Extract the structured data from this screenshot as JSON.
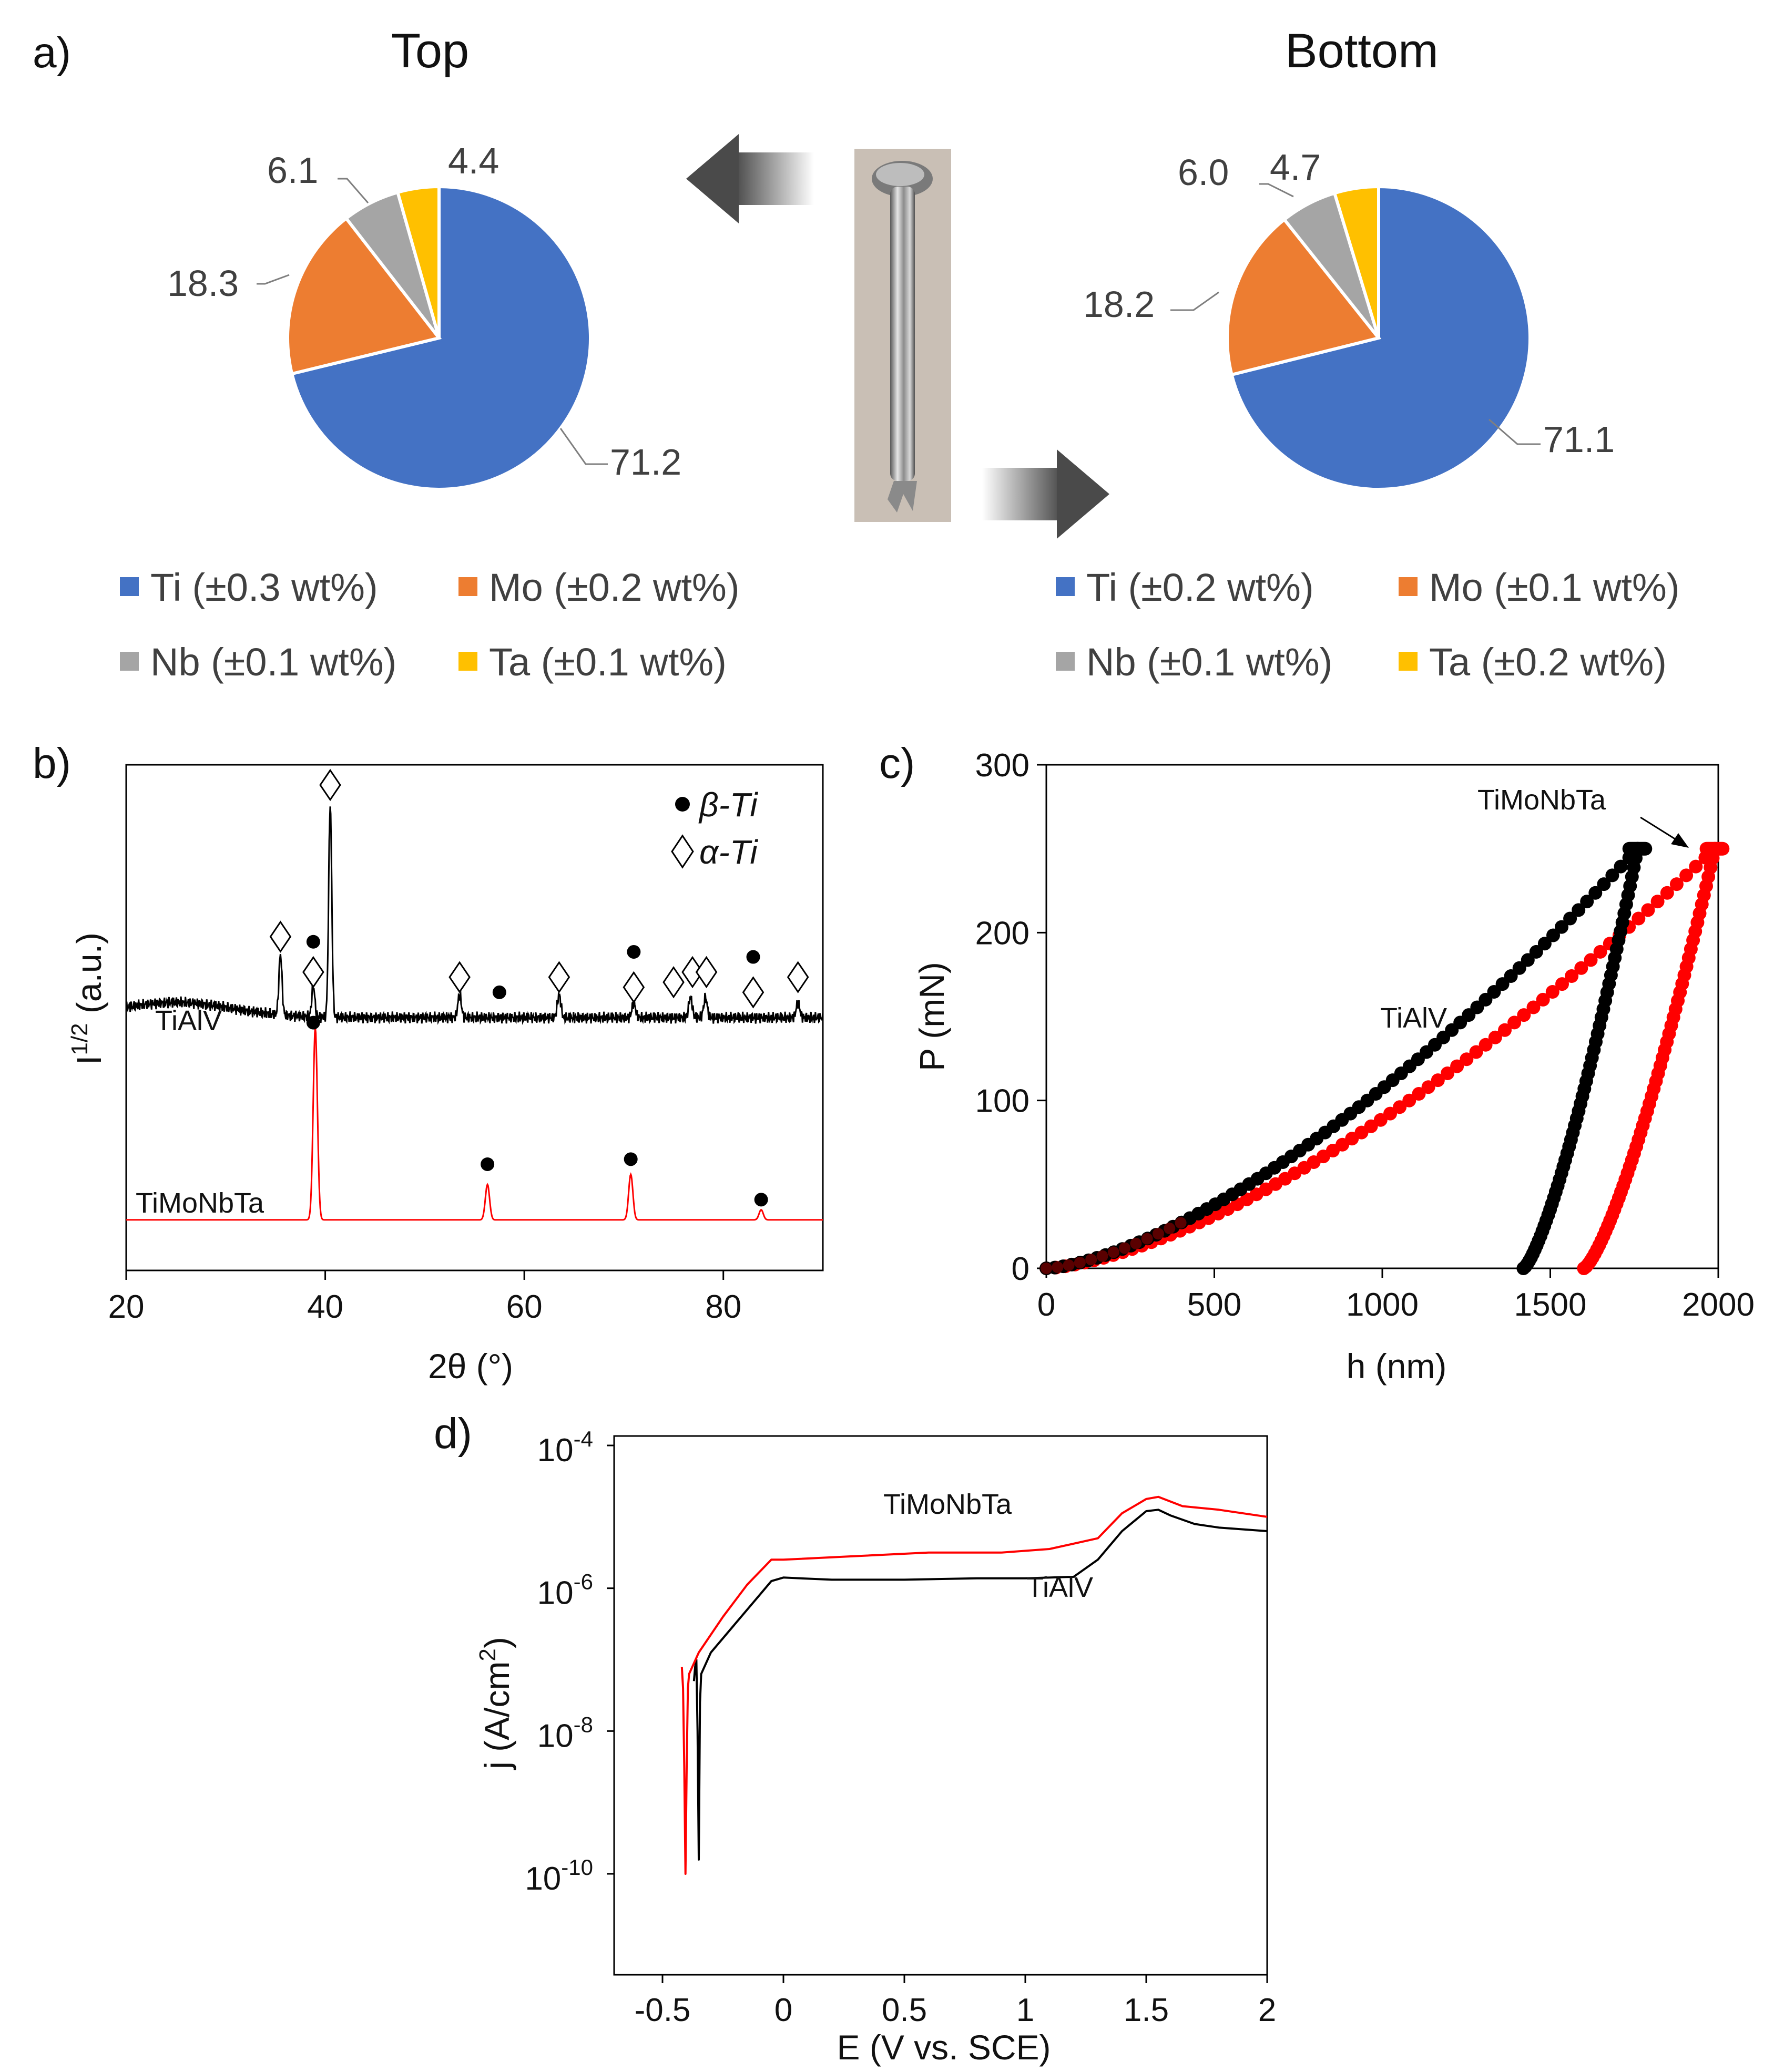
{
  "colors": {
    "ti": "#4472C4",
    "mo": "#ED7D31",
    "nb": "#A5A5A5",
    "ta": "#FFC000",
    "black_series": "#000000",
    "red_series": "#FF0000"
  },
  "icons": {
    "rod_photo": "metal-rod-photo-icon",
    "arrow_left": "arrow-left-icon",
    "arrow_right": "arrow-right-icon",
    "dot_marker": "filled-circle-icon",
    "diamond_marker": "open-diamond-icon"
  },
  "panel_labels": {
    "a": "a)",
    "b": "b)",
    "c": "c)",
    "d": "d)"
  },
  "chart_data": [
    {
      "type": "pie",
      "panel": "a",
      "title": "Top",
      "categories": [
        "Ti",
        "Mo",
        "Nb",
        "Ta"
      ],
      "values": [
        71.2,
        18.3,
        6.1,
        4.4
      ],
      "value_labels": [
        "71.2",
        "18.3",
        "6.1",
        "4.4"
      ],
      "legend": [
        "Ti (±0.3 wt%)",
        "Mo (±0.2 wt%)",
        "Nb (±0.1 wt%)",
        "Ta (±0.1 wt%)"
      ]
    },
    {
      "type": "pie",
      "panel": "a",
      "title": "Bottom",
      "categories": [
        "Ti",
        "Mo",
        "Nb",
        "Ta"
      ],
      "values": [
        71.1,
        18.2,
        6.0,
        4.7
      ],
      "value_labels": [
        "71.1",
        "18.2",
        "6.0",
        "4.7"
      ],
      "legend": [
        "Ti (±0.2 wt%)",
        "Mo (±0.1 wt%)",
        "Nb (±0.1 wt%)",
        "Ta (±0.2 wt%)"
      ]
    },
    {
      "type": "line",
      "panel": "b",
      "xlabel": "2θ (°)",
      "ylabel": "I1/2 (a.u.)",
      "ylabel_main": "I",
      "ylabel_sup": "1/2",
      "ylabel_rest": " (a.u.)",
      "xlim": [
        20,
        90
      ],
      "xticks": [
        "20",
        "40",
        "60",
        "80"
      ],
      "xtick_values": [
        20,
        40,
        60,
        80
      ],
      "legend": [
        {
          "marker": "dot",
          "label": "β-Ti"
        },
        {
          "marker": "diamond",
          "label": "α-Ti"
        }
      ],
      "series": [
        {
          "name": "TiAlV",
          "color": "#000000",
          "baseline": 0.5,
          "peaks": [
            {
              "x": 35.5,
              "h": 0.12,
              "w": 0.22
            },
            {
              "x": 38.8,
              "h": 0.06,
              "w": 0.22
            },
            {
              "x": 40.5,
              "h": 0.42,
              "w": 0.22
            },
            {
              "x": 53.5,
              "h": 0.045,
              "w": 0.25
            },
            {
              "x": 63.5,
              "h": 0.045,
              "w": 0.25
            },
            {
              "x": 71.0,
              "h": 0.03,
              "w": 0.25
            },
            {
              "x": 76.7,
              "h": 0.04,
              "w": 0.25
            },
            {
              "x": 78.2,
              "h": 0.04,
              "w": 0.25
            },
            {
              "x": 87.5,
              "h": 0.03,
              "w": 0.25
            }
          ],
          "markers": [
            {
              "type": "diamond",
              "x": 35.5,
              "level": 0.66
            },
            {
              "type": "dot",
              "x": 38.8,
              "level": 0.65
            },
            {
              "type": "diamond",
              "x": 38.8,
              "level": 0.59
            },
            {
              "type": "dot",
              "x": 38.8,
              "level": 0.49
            },
            {
              "type": "diamond",
              "x": 40.5,
              "level": 0.96
            },
            {
              "type": "diamond",
              "x": 53.5,
              "level": 0.58
            },
            {
              "type": "dot",
              "x": 57.5,
              "level": 0.55
            },
            {
              "type": "diamond",
              "x": 63.5,
              "level": 0.58
            },
            {
              "type": "dot",
              "x": 71.0,
              "level": 0.63
            },
            {
              "type": "diamond",
              "x": 71.0,
              "level": 0.56
            },
            {
              "type": "diamond",
              "x": 75.0,
              "level": 0.57
            },
            {
              "type": "diamond",
              "x": 76.9,
              "level": 0.59
            },
            {
              "type": "diamond",
              "x": 78.3,
              "level": 0.59
            },
            {
              "type": "dot",
              "x": 83.0,
              "level": 0.62
            },
            {
              "type": "diamond",
              "x": 83.0,
              "level": 0.55
            },
            {
              "type": "diamond",
              "x": 87.5,
              "level": 0.58
            }
          ]
        },
        {
          "name": "TiMoNbTa",
          "color": "#FF0000",
          "baseline": 0.1,
          "peaks": [
            {
              "x": 39.0,
              "h": 0.38,
              "w": 0.3
            },
            {
              "x": 56.3,
              "h": 0.07,
              "w": 0.3
            },
            {
              "x": 70.7,
              "h": 0.09,
              "w": 0.3
            },
            {
              "x": 83.8,
              "h": 0.02,
              "w": 0.3
            }
          ],
          "markers": [
            {
              "type": "dot",
              "x": 56.3,
              "level": 0.21
            },
            {
              "type": "dot",
              "x": 70.7,
              "level": 0.22
            },
            {
              "type": "dot",
              "x": 83.8,
              "level": 0.14
            }
          ]
        }
      ]
    },
    {
      "type": "scatter",
      "panel": "c",
      "xlabel": "h (nm)",
      "ylabel": "P (mN)",
      "xlim": [
        0,
        2000
      ],
      "ylim": [
        0,
        300
      ],
      "xticks": [
        0,
        500,
        1000,
        1500,
        2000
      ],
      "yticks": [
        0,
        100,
        200,
        300
      ],
      "annotations": [
        "TiMoNbTa",
        "TiAlV"
      ],
      "series": [
        {
          "name": "TiAlV",
          "color": "#000000",
          "max_load": 250,
          "max_depth": 1760,
          "final_depth": 1420,
          "loading_exponent": 1.5
        },
        {
          "name": "TiMoNbTa",
          "color": "#FF0000",
          "max_load": 250,
          "max_depth": 1990,
          "final_depth": 1600,
          "loading_exponent": 1.5
        }
      ]
    },
    {
      "type": "line",
      "panel": "d",
      "xlabel": "E (V vs. SCE)",
      "ylabel": "j (A/cm2)",
      "ylabel_main": "j (A/cm",
      "ylabel_sup": "2",
      "ylabel_rest": ")",
      "xlim": [
        -0.7,
        2
      ],
      "ylim_log10": [
        -11,
        -4
      ],
      "xticks": [
        "-0.5",
        "0",
        "0.5",
        "1",
        "1.5",
        "2"
      ],
      "xtick_values": [
        -0.5,
        0,
        0.5,
        1,
        1.5,
        2
      ],
      "yticks": [
        {
          "base": "10",
          "exp": "-4",
          "value": -4
        },
        {
          "base": "10",
          "exp": "-6",
          "value": -6
        },
        {
          "base": "10",
          "exp": "-8",
          "value": -8
        },
        {
          "base": "10",
          "exp": "-10",
          "value": -10
        }
      ],
      "annotations": [
        "TiMoNbTa",
        "TiAlV"
      ],
      "series": [
        {
          "name": "TiAlV",
          "color": "#000000",
          "x": [
            -0.37,
            -0.365,
            -0.36,
            -0.355,
            -0.35,
            -0.345,
            -0.34,
            -0.3,
            -0.2,
            -0.1,
            -0.05,
            0.0,
            0.2,
            0.5,
            0.8,
            1.0,
            1.2,
            1.3,
            1.4,
            1.5,
            1.55,
            1.6,
            1.7,
            1.8,
            2.0
          ],
          "log10_j": [
            -7.3,
            -7.1,
            -7.0,
            -8.0,
            -9.8,
            -7.6,
            -7.2,
            -6.9,
            -6.5,
            -6.1,
            -5.9,
            -5.85,
            -5.88,
            -5.88,
            -5.86,
            -5.86,
            -5.84,
            -5.6,
            -5.2,
            -4.92,
            -4.9,
            -4.98,
            -5.1,
            -5.15,
            -5.2
          ]
        },
        {
          "name": "TiMoNbTa",
          "color": "#FF0000",
          "x": [
            -0.42,
            -0.415,
            -0.41,
            -0.405,
            -0.4,
            -0.395,
            -0.39,
            -0.35,
            -0.25,
            -0.15,
            -0.05,
            0.0,
            0.3,
            0.6,
            0.9,
            1.1,
            1.3,
            1.4,
            1.5,
            1.55,
            1.65,
            1.8,
            2.0
          ],
          "log10_j": [
            -7.1,
            -7.4,
            -8.5,
            -10.0,
            -8.5,
            -7.4,
            -7.2,
            -6.9,
            -6.4,
            -5.95,
            -5.6,
            -5.6,
            -5.55,
            -5.5,
            -5.5,
            -5.45,
            -5.3,
            -4.95,
            -4.75,
            -4.72,
            -4.85,
            -4.9,
            -5.0
          ]
        }
      ]
    }
  ]
}
